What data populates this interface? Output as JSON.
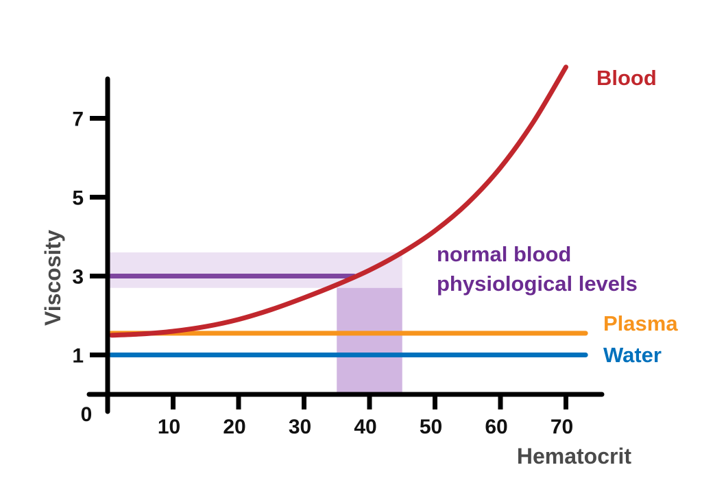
{
  "chart_data": {
    "type": "line",
    "title": "",
    "xlabel": "Hematocrit",
    "ylabel": "Viscosity",
    "xlim": [
      0,
      75
    ],
    "ylim": [
      0,
      8
    ],
    "origin_label": "0",
    "x_ticks": [
      10,
      20,
      30,
      40,
      50,
      60,
      70
    ],
    "y_ticks": [
      1,
      3,
      5,
      7
    ],
    "grid": false,
    "series": [
      {
        "name": "Blood",
        "color": "#c1272d",
        "x": [
          0,
          5,
          10,
          15,
          20,
          25,
          30,
          35,
          40,
          45,
          50,
          55,
          60,
          65,
          70
        ],
        "y": [
          1.5,
          1.53,
          1.6,
          1.72,
          1.9,
          2.15,
          2.45,
          2.78,
          3.15,
          3.6,
          4.15,
          4.85,
          5.75,
          6.9,
          8.3
        ]
      },
      {
        "name": "Plasma",
        "color": "#f7941d",
        "x": [
          0,
          73
        ],
        "y": [
          1.55,
          1.55
        ]
      },
      {
        "name": "Water",
        "color": "#0071bc",
        "x": [
          0,
          73
        ],
        "y": [
          1.0,
          1.0
        ]
      }
    ],
    "annotation": {
      "label_line1": "normal blood",
      "label_line2": "physiological levels",
      "color": "#6b2c91",
      "highlight_color": "#c9a9dc",
      "hematocrit_range": [
        35,
        45
      ],
      "viscosity_band": [
        2.7,
        3.6
      ],
      "reference_viscosity": 3.0
    }
  }
}
